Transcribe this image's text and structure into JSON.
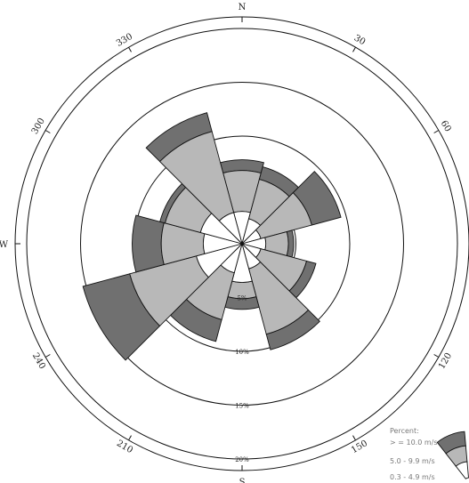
{
  "chart_data": {
    "type": "wind-rose",
    "cardinal_labels": {
      "N": "N",
      "S": "S",
      "W": "W"
    },
    "degree_labels": [
      {
        "deg": 330,
        "text": "330"
      },
      {
        "deg": 30,
        "text": "30"
      },
      {
        "deg": 300,
        "text": "300"
      },
      {
        "deg": 60,
        "text": "60"
      },
      {
        "deg": 240,
        "text": "240"
      },
      {
        "deg": 120,
        "text": "120"
      },
      {
        "deg": 210,
        "text": "210"
      },
      {
        "deg": 150,
        "text": "150"
      }
    ],
    "rings": [
      {
        "value": 5,
        "label": "5%"
      },
      {
        "value": 10,
        "label": "10%"
      },
      {
        "value": 15,
        "label": "15%"
      },
      {
        "value": 20,
        "label": "20%"
      }
    ],
    "legend": {
      "title": "Percent:",
      "items": [
        {
          "label": "> = 10.0 m/s",
          "color": "#707070"
        },
        {
          "label": "5.0 - 9.9 m/s",
          "color": "#b8b8b8"
        },
        {
          "label": "0.3 - 4.9 m/s",
          "color": "#ffffff"
        }
      ]
    },
    "sector_width_deg": 30,
    "sectors": [
      {
        "direction": 0,
        "calm_to_4_9": 3.0,
        "to_9_9": 6.8,
        "to_10_plus": 7.8
      },
      {
        "direction": 30,
        "calm_to_4_9": 2.4,
        "to_9_9": 6.2,
        "to_10_plus": 7.4
      },
      {
        "direction": 60,
        "calm_to_4_9": 1.8,
        "to_9_9": 6.7,
        "to_10_plus": 9.5
      },
      {
        "direction": 90,
        "calm_to_4_9": 2.2,
        "to_9_9": 4.3,
        "to_10_plus": 4.8
      },
      {
        "direction": 120,
        "calm_to_4_9": 1.8,
        "to_9_9": 6.2,
        "to_10_plus": 7.1
      },
      {
        "direction": 150,
        "calm_to_4_9": 2.4,
        "to_9_9": 8.7,
        "to_10_plus": 10.2
      },
      {
        "direction": 180,
        "calm_to_4_9": 3.6,
        "to_9_9": 5.1,
        "to_10_plus": 6.1
      },
      {
        "direction": 210,
        "calm_to_4_9": 2.8,
        "to_9_9": 7.3,
        "to_10_plus": 9.4
      },
      {
        "direction": 240,
        "calm_to_4_9": 4.4,
        "to_9_9": 10.8,
        "to_10_plus": 15.3
      },
      {
        "direction": 270,
        "calm_to_4_9": 3.6,
        "to_9_9": 7.5,
        "to_10_plus": 10.2
      },
      {
        "direction": 300,
        "calm_to_4_9": 4.0,
        "to_9_9": 7.4,
        "to_10_plus": 7.9
      },
      {
        "direction": 330,
        "calm_to_4_9": 3.0,
        "to_9_9": 10.8,
        "to_10_plus": 12.6
      }
    ]
  }
}
